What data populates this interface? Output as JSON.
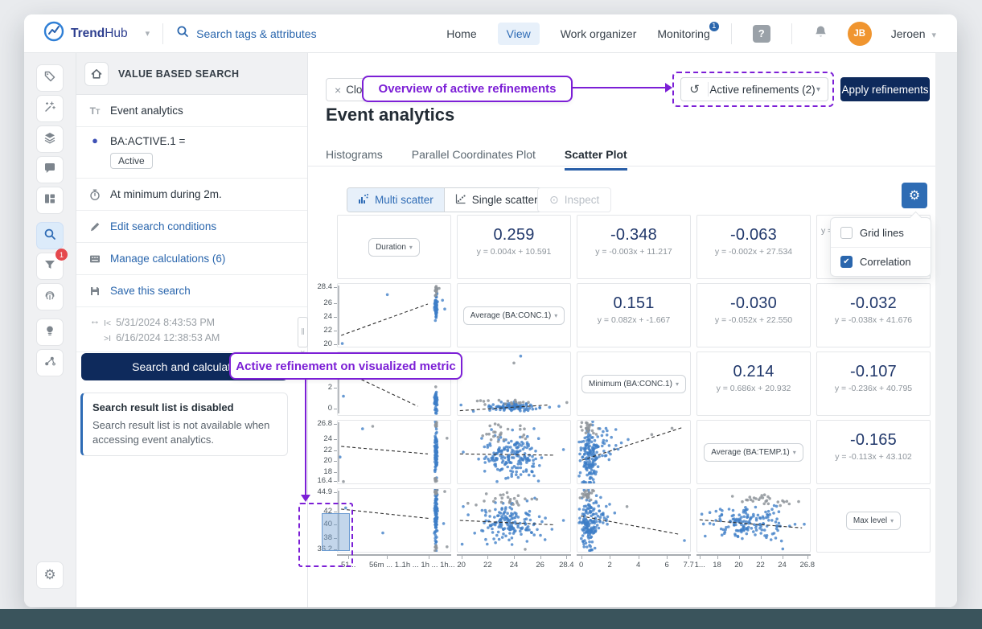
{
  "page": {
    "background": "#e9ebee",
    "bottom_bar_color": "#3a545c"
  },
  "navbar": {
    "brand": {
      "t1": "Trend",
      "t2": "Hub"
    },
    "search": {
      "placeholder": "Search tags & attributes"
    },
    "items": [
      {
        "label": "Home",
        "active": false
      },
      {
        "label": "View",
        "active": true
      },
      {
        "label": "Work organizer",
        "active": false
      },
      {
        "label": "Monitoring",
        "active": false,
        "badge": "1"
      }
    ],
    "user": {
      "initials": "JB",
      "name": "Jeroen"
    }
  },
  "rail": {
    "items": [
      {
        "icon": "tag-icon"
      },
      {
        "icon": "wand-icon"
      },
      {
        "icon": "layers-icon"
      },
      {
        "icon": "comment-icon"
      },
      {
        "icon": "dashboard-icon"
      },
      {
        "icon": "search-icon",
        "active": true
      },
      {
        "icon": "filter-icon",
        "badge": "1"
      },
      {
        "icon": "fingerprint-icon"
      },
      {
        "icon": "lightbulb-icon"
      },
      {
        "icon": "graph-icon"
      }
    ],
    "bottom_icon": "gear-icon"
  },
  "sidebar": {
    "title": "VALUE BASED SEARCH",
    "items": [
      {
        "icon": "text-style-icon",
        "label": "Event analytics"
      },
      {
        "icon": "status-dot-icon",
        "label": "BA:ACTIVE.1 =",
        "chip": "Active",
        "dot_color": "#3f51b5"
      },
      {
        "icon": "stopwatch-icon",
        "label": "At minimum during 2m."
      },
      {
        "icon": "pencil-icon",
        "label": "Edit search conditions",
        "link": true
      },
      {
        "icon": "calculations-icon",
        "label": "Manage calculations (6)",
        "link": true
      },
      {
        "icon": "save-icon",
        "label": "Save this search",
        "link": true
      },
      {
        "icon": "time-range-icon",
        "muted": true,
        "lines": [
          [
            "I<",
            "5/31/2024 8:43:53 PM"
          ],
          [
            ">I",
            "6/16/2024 12:38:53 AM"
          ]
        ]
      }
    ],
    "search_button": "Search and calculate",
    "notice": {
      "title": "Search result list is disabled",
      "body": "Search result list is not available when accessing event analytics."
    }
  },
  "main": {
    "close_chip": "Close",
    "refinements": {
      "reset_icon": "undo-icon",
      "label": "Active refinements (2)",
      "apply": "Apply refinements"
    },
    "title": "Event analytics",
    "tabs": [
      {
        "label": "Histograms",
        "active": false
      },
      {
        "label": "Parallel Coordinates Plot",
        "active": false
      },
      {
        "label": "Scatter Plot",
        "active": true
      }
    ],
    "toolbar": {
      "multi": "Multi scatter",
      "single": "Single scatter",
      "inspect": "Inspect"
    },
    "settings_menu": {
      "items": [
        {
          "label": "Grid lines",
          "checked": false
        },
        {
          "label": "Correlation",
          "checked": true
        }
      ]
    }
  },
  "annotations": {
    "color": "#7c1fd6",
    "callout1": "Overview of active refinements",
    "callout2": "Active refinement on visualized metric",
    "brush_selection": {
      "axis": "Max level",
      "from": 37.3,
      "to": 42.7
    }
  },
  "chart_data": {
    "type": "scatter",
    "subtype": "scatter-matrix",
    "title": "Multi scatter matrix with correlation values",
    "variables": [
      "Duration",
      "Average (BA:CONC.1)",
      "Minimum (BA:CONC.1)",
      "Average (BA:TEMP.1)",
      "Max level"
    ],
    "point_colors": {
      "b": "#3e7dc7",
      "g": "#8e949a"
    },
    "y_axes": [
      null,
      [
        [
          "28.4",
          0.06
        ],
        [
          "26",
          0.31
        ],
        [
          "24",
          0.52
        ],
        [
          "22",
          0.74
        ],
        [
          "20",
          0.95
        ]
      ],
      [
        [
          "4",
          0.24
        ],
        [
          "2",
          0.56
        ],
        [
          "0",
          0.89
        ]
      ],
      [
        [
          "26.8",
          0.06
        ],
        [
          "24",
          0.3
        ],
        [
          "22",
          0.47
        ],
        [
          "20",
          0.64
        ],
        [
          "18",
          0.81
        ],
        [
          "16.4",
          0.95
        ]
      ],
      [
        [
          "44.9",
          0.06
        ],
        [
          "42",
          0.36
        ],
        [
          "40",
          0.56
        ],
        [
          "38",
          0.77
        ],
        [
          "36.2",
          0.95
        ]
      ]
    ],
    "x_axes": [
      [
        [
          "51...",
          0.1
        ],
        [
          "56m ... 1...",
          0.44
        ],
        [
          "1h ... 1h ... 1h...",
          0.8
        ]
      ],
      [
        [
          "20",
          0.04
        ],
        [
          "22",
          0.27
        ],
        [
          "24",
          0.5
        ],
        [
          "26",
          0.73
        ],
        [
          "28.4",
          0.96
        ]
      ],
      [
        [
          "0",
          0.04
        ],
        [
          "2",
          0.29
        ],
        [
          "4",
          0.54
        ],
        [
          "6",
          0.79
        ],
        [
          "7.7",
          0.98
        ]
      ],
      [
        [
          "1...",
          0.03
        ],
        [
          "18",
          0.18
        ],
        [
          "20",
          0.37
        ],
        [
          "22",
          0.56
        ],
        [
          "24",
          0.75
        ],
        [
          "26.8",
          0.97
        ]
      ],
      null
    ],
    "cells": [
      [
        {
          "kind": "var",
          "label": "Duration"
        },
        {
          "kind": "corr",
          "r": "0.259",
          "eq": "y = 0.004x + 10.591"
        },
        {
          "kind": "corr",
          "r": "-0.348",
          "eq": "y = -0.003x + 11.217"
        },
        {
          "kind": "corr",
          "r": "-0.063",
          "eq": "y = -0.002x + 27.534"
        },
        {
          "kind": "corr",
          "r": "",
          "eq": "y = ",
          "align": "left"
        }
      ],
      [
        {
          "kind": "plot",
          "trend": [
            0.03,
            0.82,
            0.8,
            0.32
          ],
          "clusters": [
            [
              0.872,
              0.33,
              0.006,
              0.11,
              75,
              "b"
            ],
            [
              0.872,
              0.1,
              0.005,
              0.035,
              14,
              "g"
            ]
          ],
          "points": [
            [
              0.04,
              0.95,
              "b"
            ],
            [
              0.44,
              0.17,
              "b"
            ],
            [
              0.93,
              0.26,
              "b"
            ],
            [
              0.95,
              0.4,
              "b"
            ],
            [
              0.9,
              0.07,
              "g"
            ]
          ]
        },
        {
          "kind": "var",
          "label": "Average (BA:CONC.1)"
        },
        {
          "kind": "corr",
          "r": "0.151",
          "eq": "y = 0.082x + -1.667"
        },
        {
          "kind": "corr",
          "r": "-0.030",
          "eq": "y = -0.052x + 22.550"
        },
        {
          "kind": "corr",
          "r": "-0.032",
          "eq": "y = -0.038x + 41.676"
        }
      ],
      [
        {
          "kind": "plot",
          "trend": [
            0.03,
            0.28,
            0.71,
            0.86
          ],
          "clusters": [
            [
              0.872,
              0.8,
              0.006,
              0.085,
              60,
              "b"
            ]
          ],
          "points": [
            [
              0.05,
              0.7,
              "b"
            ],
            [
              0.87,
              0.97,
              "b"
            ],
            [
              0.87,
              0.55,
              "g"
            ]
          ]
        },
        {
          "kind": "plot",
          "trend": [
            0.02,
            0.93,
            0.8,
            0.84
          ],
          "clusters": [
            [
              0.47,
              0.875,
              0.13,
              0.035,
              95,
              "b"
            ],
            [
              0.44,
              0.79,
              0.11,
              0.025,
              16,
              "g"
            ]
          ],
          "points": [
            [
              0.03,
              0.84,
              "b"
            ],
            [
              0.14,
              0.94,
              "b"
            ],
            [
              0.9,
              0.86,
              "b"
            ],
            [
              0.56,
              0.06,
              "b"
            ],
            [
              0.5,
              0.17,
              "g"
            ],
            [
              0.97,
              0.8,
              "g"
            ]
          ]
        },
        {
          "kind": "var",
          "label": "Minimum (BA:CONC.1)"
        },
        {
          "kind": "corr",
          "r": "0.214",
          "eq": "y = 0.686x + 20.932"
        },
        {
          "kind": "corr",
          "r": "-0.107",
          "eq": "y = -0.236x + 40.795"
        }
      ],
      [
        {
          "kind": "plot",
          "trend": [
            0.03,
            0.41,
            0.8,
            0.53
          ],
          "clusters": [
            [
              0.872,
              0.48,
              0.006,
              0.17,
              95,
              "b"
            ],
            [
              0.872,
              0.07,
              0.005,
              0.025,
              10,
              "g"
            ],
            [
              0.872,
              0.94,
              0.005,
              0.02,
              6,
              "g"
            ]
          ],
          "points": [
            [
              0.02,
              0.58,
              "b"
            ],
            [
              0.22,
              0.13,
              "b"
            ],
            [
              0.31,
              0.09,
              "g"
            ],
            [
              0.97,
              0.28,
              "g"
            ],
            [
              0.05,
              0.97,
              "g"
            ]
          ]
        },
        {
          "kind": "plot",
          "trend": [
            0.02,
            0.53,
            0.86,
            0.55
          ],
          "clusters": [
            [
              0.48,
              0.52,
              0.135,
              0.16,
              165,
              "b"
            ],
            [
              0.46,
              0.22,
              0.12,
              0.07,
              24,
              "g"
            ],
            [
              0.52,
              0.86,
              0.11,
              0.045,
              12,
              "b"
            ]
          ],
          "points": [
            [
              0.05,
              0.5,
              "b"
            ],
            [
              0.94,
              0.46,
              "b"
            ],
            [
              0.35,
              0.97,
              "b"
            ]
          ]
        },
        {
          "kind": "plot",
          "trend": [
            0.04,
            0.63,
            0.93,
            0.11
          ],
          "clusters": [
            [
              0.11,
              0.55,
              0.045,
              0.21,
              150,
              "b"
            ],
            [
              0.1,
              0.1,
              0.04,
              0.045,
              22,
              "g"
            ],
            [
              0.27,
              0.42,
              0.05,
              0.14,
              28,
              "b"
            ]
          ],
          "points": [
            [
              0.84,
              0.12,
              "g"
            ],
            [
              0.66,
              0.22,
              "g"
            ],
            [
              0.45,
              0.3,
              "b"
            ]
          ]
        },
        {
          "kind": "var",
          "label": "Average (BA:TEMP.1)"
        },
        {
          "kind": "corr",
          "r": "-0.165",
          "eq": "y = -0.113x + 43.102"
        }
      ],
      [
        {
          "kind": "plot",
          "brushed": true,
          "trend": [
            0.03,
            0.32,
            0.82,
            0.47
          ],
          "clusters": [
            [
              0.872,
              0.45,
              0.006,
              0.2,
              110,
              "b"
            ],
            [
              0.872,
              0.06,
              0.005,
              0.025,
              12,
              "g"
            ],
            [
              0.872,
              0.93,
              0.005,
              0.025,
              8,
              "g"
            ]
          ],
          "points": [
            [
              0.4,
              0.7,
              "b"
            ],
            [
              0.95,
              0.04,
              "g"
            ],
            [
              0.94,
              0.55,
              "b"
            ],
            [
              0.97,
              0.92,
              "g"
            ],
            [
              0.07,
              0.3,
              "b"
            ]
          ]
        },
        {
          "kind": "plot",
          "trend": [
            0.02,
            0.5,
            0.86,
            0.57
          ],
          "clusters": [
            [
              0.46,
              0.56,
              0.14,
              0.15,
              155,
              "b"
            ],
            [
              0.44,
              0.2,
              0.13,
              0.06,
              26,
              "g"
            ]
          ],
          "points": [
            [
              0.05,
              0.28,
              "b"
            ],
            [
              0.04,
              0.88,
              "b"
            ],
            [
              0.94,
              0.5,
              "b"
            ],
            [
              0.6,
              0.96,
              "g"
            ]
          ]
        },
        {
          "kind": "plot",
          "trend": [
            0.03,
            0.43,
            0.9,
            0.72
          ],
          "clusters": [
            [
              0.1,
              0.52,
              0.04,
              0.22,
              140,
              "b"
            ],
            [
              0.09,
              0.09,
              0.035,
              0.04,
              20,
              "g"
            ],
            [
              0.24,
              0.4,
              0.04,
              0.12,
              20,
              "b"
            ]
          ],
          "points": [
            [
              0.95,
              0.82,
              "b"
            ],
            [
              0.44,
              0.28,
              "g"
            ],
            [
              0.13,
              0.97,
              "b"
            ]
          ]
        },
        {
          "kind": "plot",
          "trend": [
            0.02,
            0.49,
            0.93,
            0.62
          ],
          "clusters": [
            [
              0.46,
              0.54,
              0.15,
              0.14,
              150,
              "b"
            ],
            [
              0.5,
              0.16,
              0.13,
              0.055,
              26,
              "g"
            ]
          ],
          "points": [
            [
              0.04,
              0.4,
              "b"
            ],
            [
              0.95,
              0.56,
              "b"
            ],
            [
              0.9,
              0.2,
              "g"
            ],
            [
              0.07,
              0.75,
              "b"
            ]
          ]
        },
        {
          "kind": "var",
          "label": "Max level"
        }
      ]
    ]
  }
}
